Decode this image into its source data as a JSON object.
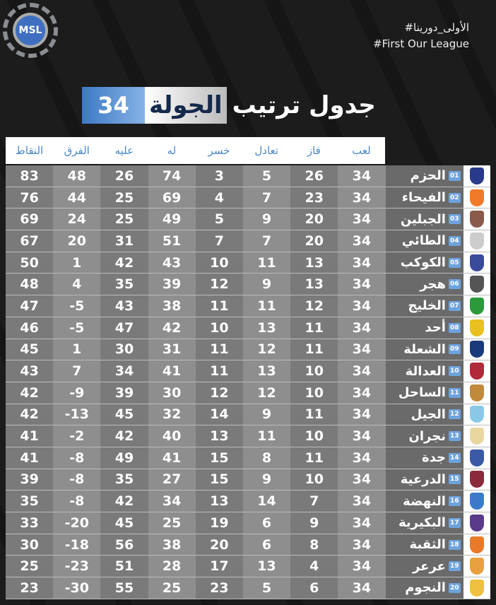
{
  "brand": {
    "logo_text": "MSL"
  },
  "hashtags": [
    "#الأولى_دورينا",
    "#First Our League"
  ],
  "title": {
    "prefix": "جدول ترتيب",
    "highlight": "الجولة",
    "round": "34"
  },
  "columns": {
    "played": "لعب",
    "won": "فاز",
    "drawn": "تعادل",
    "lost": "خسر",
    "gf": "له",
    "ga": "عليه",
    "gd": "الفرق",
    "pts": "النقاط"
  },
  "rows": [
    {
      "rank": "01",
      "team": "الحزم",
      "p": "34",
      "w": "26",
      "d": "5",
      "l": "3",
      "gf": "74",
      "ga": "26",
      "gd": "48",
      "pts": "83",
      "color": "#2a3a8a"
    },
    {
      "rank": "02",
      "team": "الفيحاء",
      "p": "34",
      "w": "23",
      "d": "7",
      "l": "4",
      "gf": "69",
      "ga": "25",
      "gd": "44",
      "pts": "76",
      "color": "#f07a2a"
    },
    {
      "rank": "03",
      "team": "الجبلين",
      "p": "34",
      "w": "20",
      "d": "9",
      "l": "5",
      "gf": "49",
      "ga": "25",
      "gd": "24",
      "pts": "69",
      "color": "#8a5a4a"
    },
    {
      "rank": "04",
      "team": "الطائي",
      "p": "34",
      "w": "20",
      "d": "7",
      "l": "7",
      "gf": "51",
      "ga": "31",
      "gd": "20",
      "pts": "67",
      "color": "#cccccc"
    },
    {
      "rank": "05",
      "team": "الكوكب",
      "p": "34",
      "w": "13",
      "d": "11",
      "l": "10",
      "gf": "43",
      "ga": "42",
      "gd": "1",
      "pts": "50",
      "color": "#3a4a9a"
    },
    {
      "rank": "06",
      "team": "هجر",
      "p": "34",
      "w": "13",
      "d": "9",
      "l": "12",
      "gf": "39",
      "ga": "35",
      "gd": "4",
      "pts": "48",
      "color": "#555555"
    },
    {
      "rank": "07",
      "team": "الخليج",
      "p": "34",
      "w": "12",
      "d": "11",
      "l": "11",
      "gf": "38",
      "ga": "43",
      "gd": "-5",
      "pts": "47",
      "color": "#2a9a3a"
    },
    {
      "rank": "08",
      "team": "أحد",
      "p": "34",
      "w": "11",
      "d": "13",
      "l": "10",
      "gf": "42",
      "ga": "47",
      "gd": "-5",
      "pts": "46",
      "color": "#e8c020"
    },
    {
      "rank": "09",
      "team": "الشعلة",
      "p": "34",
      "w": "11",
      "d": "12",
      "l": "11",
      "gf": "31",
      "ga": "30",
      "gd": "1",
      "pts": "45",
      "color": "#1a3a7a"
    },
    {
      "rank": "10",
      "team": "العدالة",
      "p": "34",
      "w": "10",
      "d": "13",
      "l": "11",
      "gf": "41",
      "ga": "34",
      "gd": "7",
      "pts": "43",
      "color": "#b02a3a"
    },
    {
      "rank": "11",
      "team": "الساحل",
      "p": "34",
      "w": "10",
      "d": "12",
      "l": "12",
      "gf": "30",
      "ga": "39",
      "gd": "-9",
      "pts": "42",
      "color": "#c08a3a"
    },
    {
      "rank": "12",
      "team": "الجيل",
      "p": "34",
      "w": "11",
      "d": "9",
      "l": "14",
      "gf": "32",
      "ga": "45",
      "gd": "-13",
      "pts": "42",
      "color": "#8ac8e8"
    },
    {
      "rank": "13",
      "team": "نجران",
      "p": "34",
      "w": "10",
      "d": "11",
      "l": "13",
      "gf": "40",
      "ga": "42",
      "gd": "-2",
      "pts": "41",
      "color": "#e8d8a0"
    },
    {
      "rank": "14",
      "team": "جدة",
      "p": "34",
      "w": "11",
      "d": "8",
      "l": "15",
      "gf": "41",
      "ga": "49",
      "gd": "-8",
      "pts": "41",
      "color": "#3a5aa8"
    },
    {
      "rank": "15",
      "team": "الدرعية",
      "p": "34",
      "w": "10",
      "d": "9",
      "l": "15",
      "gf": "27",
      "ga": "35",
      "gd": "-8",
      "pts": "39",
      "color": "#8a2a3a"
    },
    {
      "rank": "16",
      "team": "النهضة",
      "p": "34",
      "w": "7",
      "d": "14",
      "l": "13",
      "gf": "34",
      "ga": "42",
      "gd": "-8",
      "pts": "35",
      "color": "#3a7ac8"
    },
    {
      "rank": "17",
      "team": "البكيرية",
      "p": "34",
      "w": "9",
      "d": "6",
      "l": "19",
      "gf": "25",
      "ga": "45",
      "gd": "-20",
      "pts": "33",
      "color": "#5a3a8a"
    },
    {
      "rank": "18",
      "team": "الثقبة",
      "p": "34",
      "w": "8",
      "d": "6",
      "l": "20",
      "gf": "38",
      "ga": "56",
      "gd": "-18",
      "pts": "30",
      "color": "#e87a2a"
    },
    {
      "rank": "19",
      "team": "عرعر",
      "p": "34",
      "w": "4",
      "d": "13",
      "l": "17",
      "gf": "28",
      "ga": "51",
      "gd": "-23",
      "pts": "25",
      "color": "#e8a040"
    },
    {
      "rank": "20",
      "team": "النجوم",
      "p": "34",
      "w": "6",
      "d": "5",
      "l": "23",
      "gf": "25",
      "ga": "55",
      "gd": "-30",
      "pts": "23",
      "color": "#f0c040"
    }
  ]
}
